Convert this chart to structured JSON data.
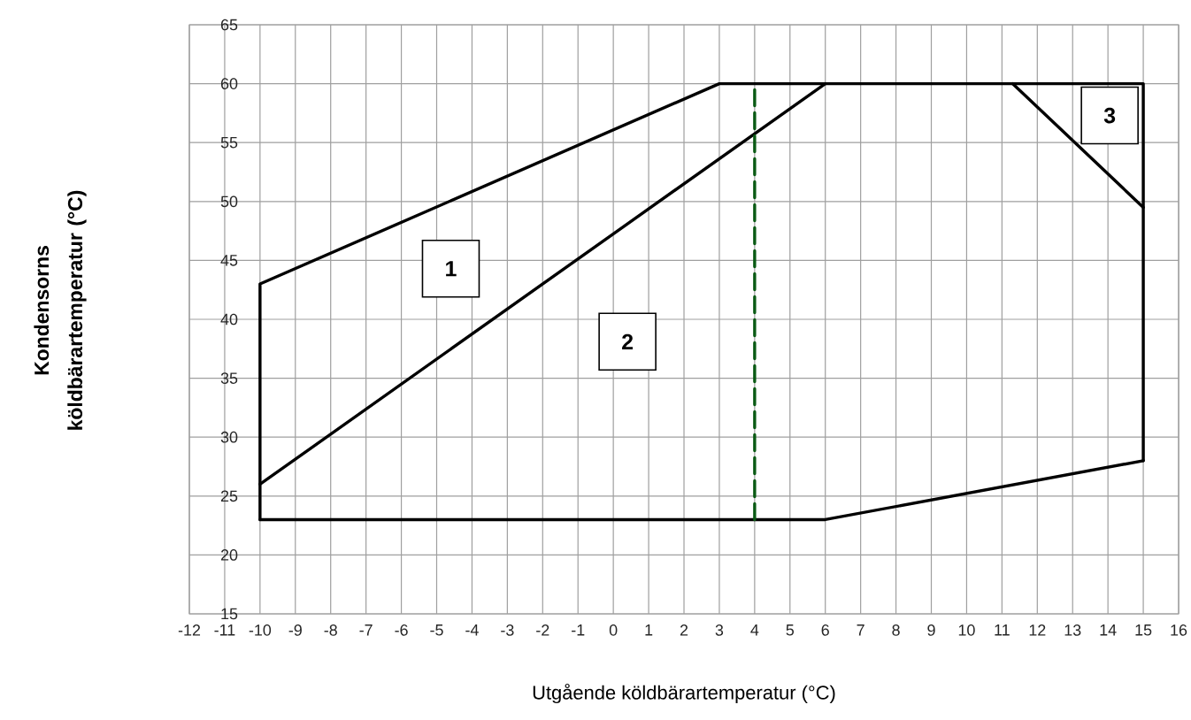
{
  "chart_data": {
    "type": "line",
    "xlabel": "Utgående köldbärartemperatur (°C)",
    "ylabel": "Kondensorns köldbärartemperatur (°C)",
    "series": [
      {
        "color": "#000000",
        "x": [
          -10,
          -10,
          3,
          15,
          15
        ],
        "values": [
          23,
          43,
          60,
          60,
          28
        ]
      },
      {
        "color": "#000000",
        "x": [
          -10,
          6,
          15
        ],
        "values": [
          23,
          23,
          28
        ]
      },
      {
        "color": "#000000",
        "x": [
          -10,
          6
        ],
        "values": [
          26,
          60
        ]
      },
      {
        "color": "#000000",
        "x": [
          11.3,
          15
        ],
        "values": [
          60,
          49.5
        ]
      },
      {
        "color": "#0a5a14",
        "x": [
          4,
          4
        ],
        "values": [
          23,
          60
        ],
        "line_style": "dashed"
      }
    ],
    "xlim": [
      -12,
      16
    ],
    "xticks": [
      -12,
      -11,
      -10,
      -9,
      -8,
      -7,
      -6,
      -5,
      -4,
      -3,
      -2,
      -1,
      0,
      1,
      2,
      3,
      4,
      5,
      6,
      7,
      8,
      9,
      10,
      11,
      12,
      13,
      14,
      15,
      16
    ],
    "ylim": [
      15,
      65
    ],
    "yticks": [
      15,
      20,
      25,
      30,
      35,
      40,
      45,
      50,
      55,
      60,
      65
    ],
    "grid": true,
    "marker": "none",
    "line_style": "solid",
    "annotations": [
      {
        "text": "1",
        "x": -4.6,
        "y": 44.3
      },
      {
        "text": "2",
        "x": 0.4,
        "y": 38.1
      },
      {
        "text": "3",
        "x": 14.05,
        "y": 57.3
      }
    ]
  }
}
